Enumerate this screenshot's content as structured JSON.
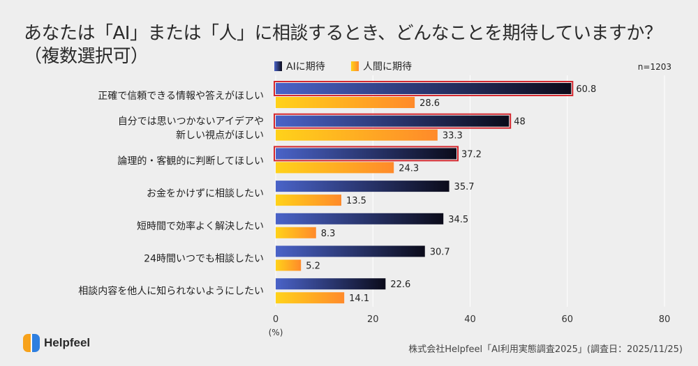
{
  "chart_data": {
    "type": "bar",
    "orientation": "horizontal",
    "title": "あなたは「AI」または「人」に相談するとき、どんなことを期待していますか？（複数選択可）",
    "title_lines": [
      "あなたは「AI」または「人」に相談するとき、どんなことを期待していますか？",
      "（複数選択可）"
    ],
    "sample_size": "n=1203",
    "categories": [
      [
        "正確で信頼できる情報や答えがほしい"
      ],
      [
        "自分では思いつかないアイデアや",
        "新しい視点がほしい"
      ],
      [
        "論理的・客観的に判断してほしい"
      ],
      [
        "お金をかけずに相談したい"
      ],
      [
        "短時間で効率よく解決したい"
      ],
      [
        "24時間いつでも相談したい"
      ],
      [
        "相談内容を他人に知られないようにしたい"
      ]
    ],
    "series": [
      {
        "name": "AIに期待",
        "values": [
          60.8,
          48,
          37.2,
          35.7,
          34.5,
          30.7,
          22.6
        ],
        "color_start": "#4a63c8",
        "color_end": "#0b0b1a"
      },
      {
        "name": "人間に期待",
        "values": [
          28.6,
          33.3,
          24.3,
          13.5,
          8.3,
          5.2,
          14.1
        ],
        "color_start": "#ffd21a",
        "color_end": "#ff8a2a"
      }
    ],
    "highlighted_ai_bars": [
      0,
      1,
      2
    ],
    "highlight_color": "#d4272e",
    "xlim": [
      0,
      80
    ],
    "xticks": [
      "0",
      "20",
      "40",
      "60",
      "80"
    ],
    "xlabel": "(%)",
    "grid": true,
    "legend_position": "top"
  },
  "footer": {
    "brand": "Helpfeel",
    "source": "株式会社Helpfeel「AI利用実態調査2025」(調査日：2025/11/25)"
  }
}
